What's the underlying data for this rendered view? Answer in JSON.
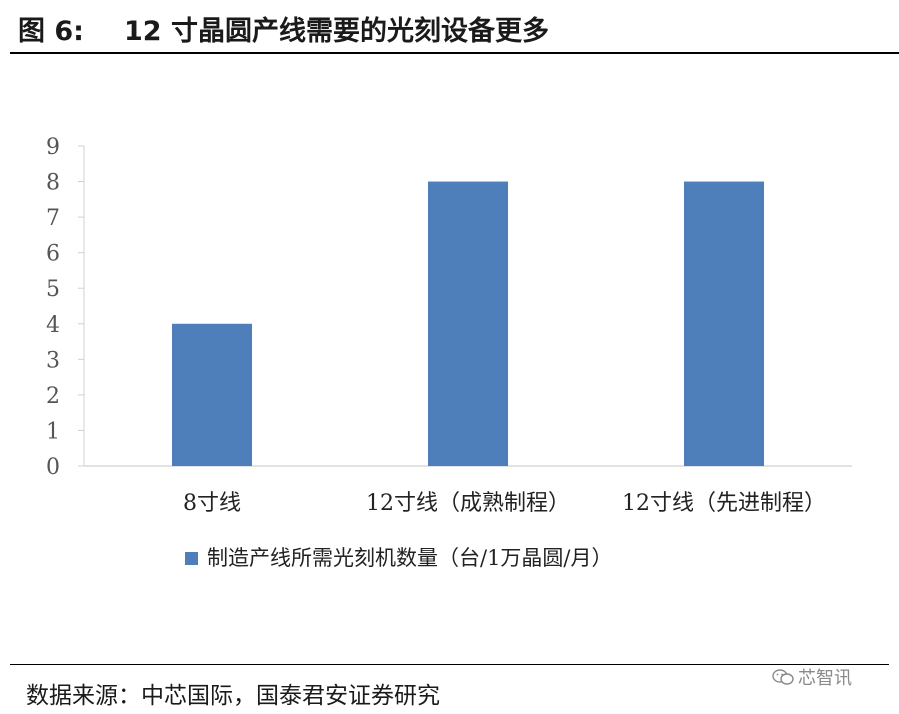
{
  "figure": {
    "label": "图 6:",
    "title": "12 寸晶圆产线需要的光刻设备更多",
    "source": "数据来源：中芯国际，国泰君安证券研究",
    "watermark": "芯智讯",
    "watermark_icon": "wechat-icon"
  },
  "chart_data": {
    "type": "bar",
    "categories": [
      "8寸线",
      "12寸线（成熟制程）",
      "12寸线（先进制程）"
    ],
    "series": [
      {
        "name": "制造产线所需光刻机数量（台/1万晶圆/月）",
        "values": [
          4,
          8,
          8
        ],
        "color": "#4e7fbb"
      }
    ],
    "ylim": [
      0,
      9
    ],
    "yticks": [
      0,
      1,
      2,
      3,
      4,
      5,
      6,
      7,
      8,
      9
    ],
    "grid": false,
    "legend": "bottom"
  }
}
